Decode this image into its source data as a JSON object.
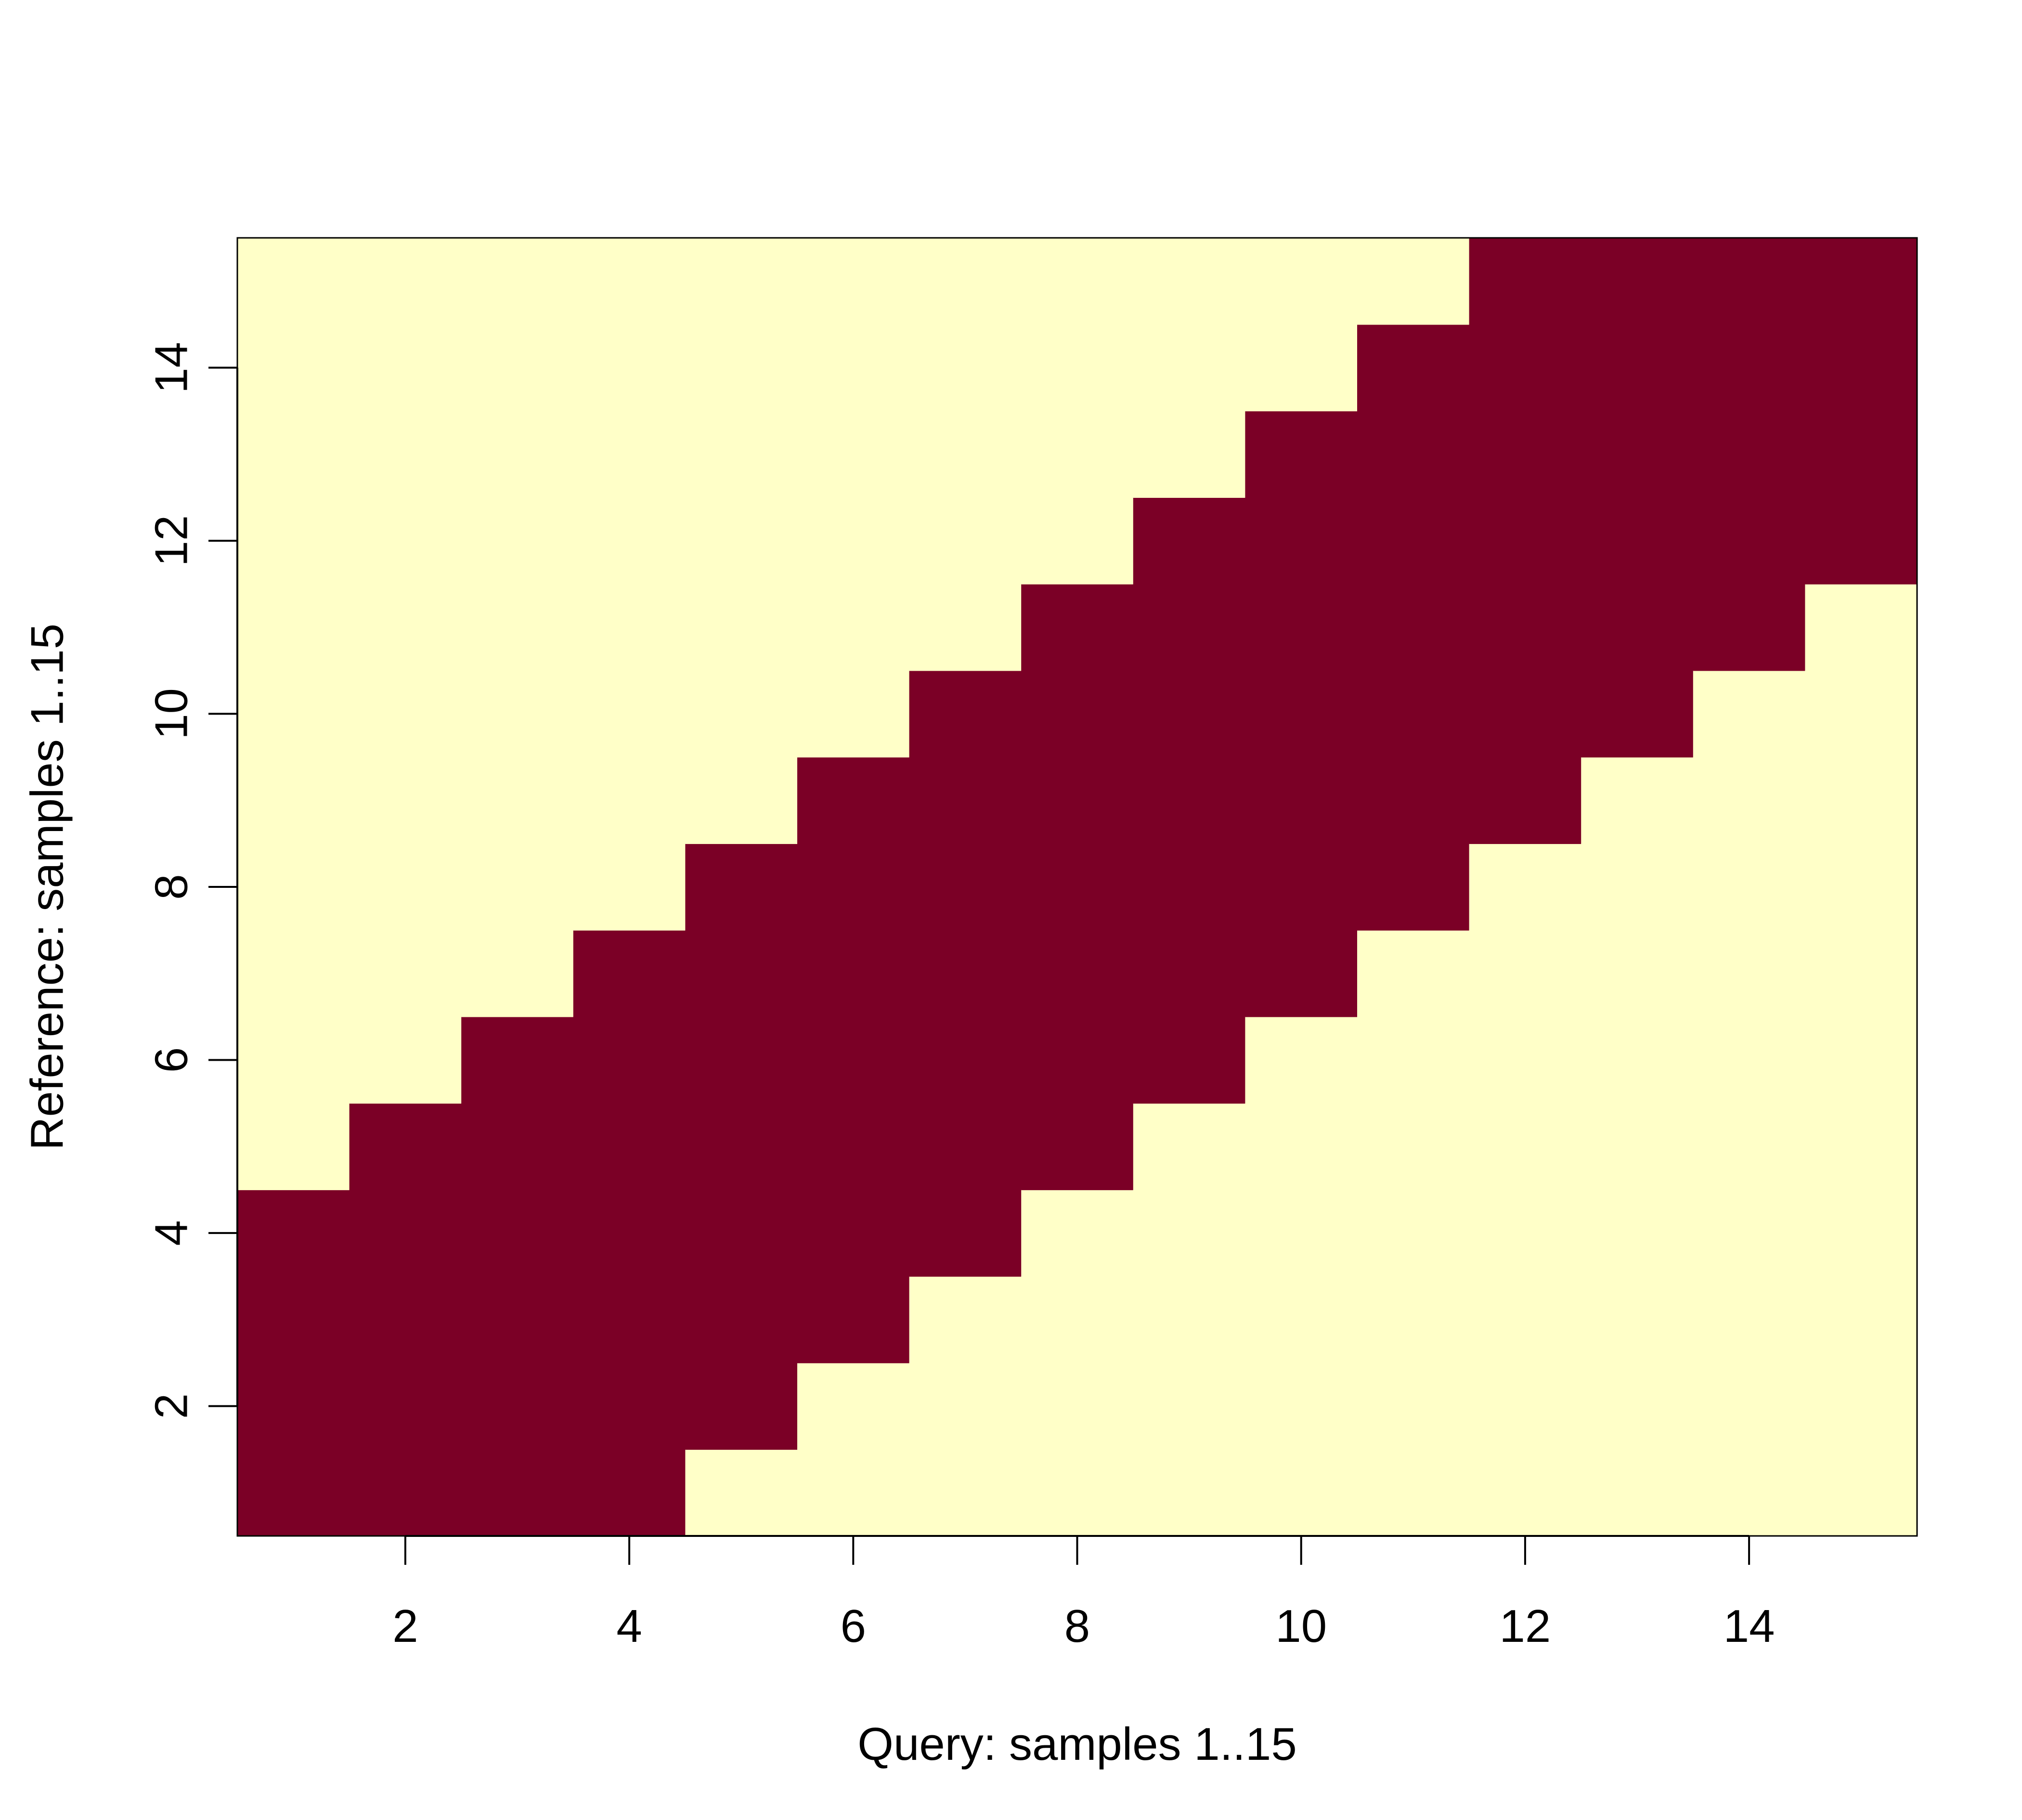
{
  "chart_data": {
    "type": "heatmap",
    "title": "",
    "xlabel": "Query: samples 1..15",
    "ylabel": "Reference: samples 1..15",
    "x": [
      1,
      2,
      3,
      4,
      5,
      6,
      7,
      8,
      9,
      10,
      11,
      12,
      13,
      14,
      15
    ],
    "y": [
      1,
      2,
      3,
      4,
      5,
      6,
      7,
      8,
      9,
      10,
      11,
      12,
      13,
      14,
      15
    ],
    "xlim": [
      0.5,
      15.5
    ],
    "ylim": [
      0.5,
      15.5
    ],
    "xticks": [
      "2",
      "4",
      "6",
      "8",
      "10",
      "12",
      "14"
    ],
    "yticks": [
      "2",
      "4",
      "6",
      "8",
      "10",
      "12",
      "14"
    ],
    "band_halfwidth": 3,
    "band_description": "cell (x,y) is inside the band when |x - y| <= 3",
    "colors": {
      "band": "#7b0026",
      "background": "#ffffc8"
    },
    "grid": false,
    "legend": "none"
  }
}
